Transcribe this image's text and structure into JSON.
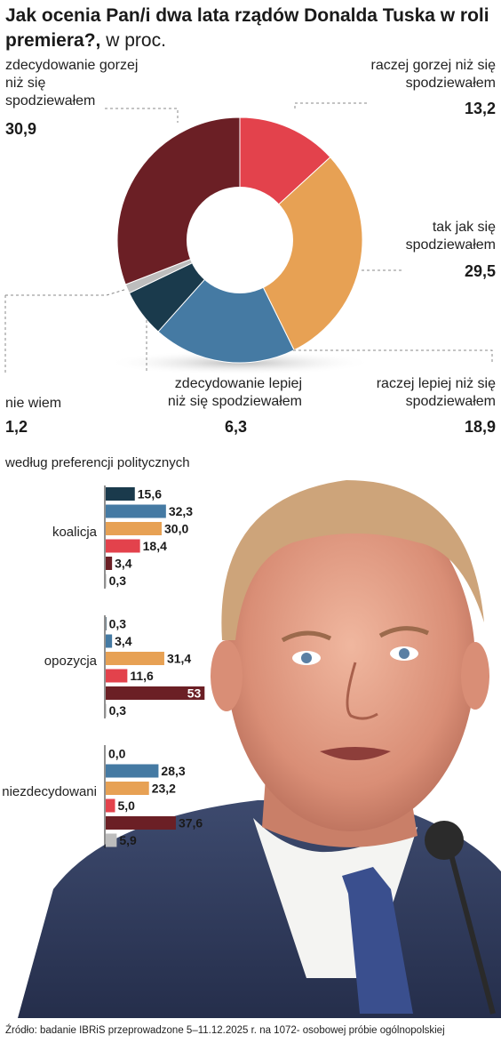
{
  "title": {
    "main": "Jak ocenia Pan/i dwa lata rządów Donalda Tuska w roli premiera?,",
    "unit": " w proc."
  },
  "colors": {
    "zdecydowanie_gorzej": "#6b1f25",
    "raczej_gorzej": "#e3424c",
    "tak_jak": "#e7a154",
    "raczej_lepiej": "#457aa3",
    "zdecydowanie_lepiej": "#1a3a4c",
    "nie_wiem": "#bdbdbd"
  },
  "chart_data": [
    {
      "type": "pie",
      "slices": [
        {
          "name": "raczej gorzej niż się spodziewałem",
          "value": 13.2
        },
        {
          "name": "tak jak się spodziewałem",
          "value": 29.5
        },
        {
          "name": "raczej lepiej niż się spodziewałem",
          "value": 18.9
        },
        {
          "name": "zdecydowanie lepiej niż się spodziewałem",
          "value": 6.3
        },
        {
          "name": "nie wiem",
          "value": 1.2
        },
        {
          "name": "zdecydowanie gorzej niż się spodziewałem",
          "value": 30.9
        }
      ],
      "labels": {
        "zg_text": [
          "zdecydowanie gorzej",
          "niż się",
          "spodziewałem"
        ],
        "zg_val": "30,9",
        "rg_text": [
          "raczej gorzej niż się",
          "spodziewałem"
        ],
        "rg_val": "13,2",
        "tj_text": [
          "tak jak się",
          "spodziewałem"
        ],
        "tj_val": "29,5",
        "rl_text": [
          "raczej lepiej niż się",
          "spodziewałem"
        ],
        "rl_val": "18,9",
        "zl_text": [
          "zdecydowanie lepiej",
          "niż się spodziewałem"
        ],
        "zl_val": "6,3",
        "nw_text": [
          "nie wiem"
        ],
        "nw_val": "1,2"
      }
    },
    {
      "type": "bar",
      "title": "według preferencji politycznych",
      "series_order": [
        "zdecydowanie lepiej",
        "raczej lepiej",
        "tak jak",
        "raczej gorzej",
        "zdecydowanie gorzej",
        "nie wiem"
      ],
      "groups": [
        {
          "name": "koalicja",
          "values": [
            15.6,
            32.3,
            30.0,
            18.4,
            3.4,
            0.3
          ],
          "labels": [
            "15,6",
            "32,3",
            "30,0",
            "18,4",
            "3,4",
            "0,3"
          ]
        },
        {
          "name": "opozycja",
          "values": [
            0.3,
            3.4,
            31.4,
            11.6,
            53,
            0.3
          ],
          "labels": [
            "0,3",
            "3,4",
            "31,4",
            "11,6",
            "53",
            "0,3"
          ]
        },
        {
          "name": "niezdecydowani",
          "values": [
            0.0,
            28.3,
            23.2,
            5.0,
            37.6,
            5.9
          ],
          "labels": [
            "0,0",
            "28,3",
            "23,2",
            "5,0",
            "37,6",
            "5,9"
          ]
        }
      ]
    }
  ],
  "source": "Źródło: badanie IBRiS przeprowadzone  5–11.12.2025 r. na 1072- osobowej próbie ogólnopolskiej"
}
